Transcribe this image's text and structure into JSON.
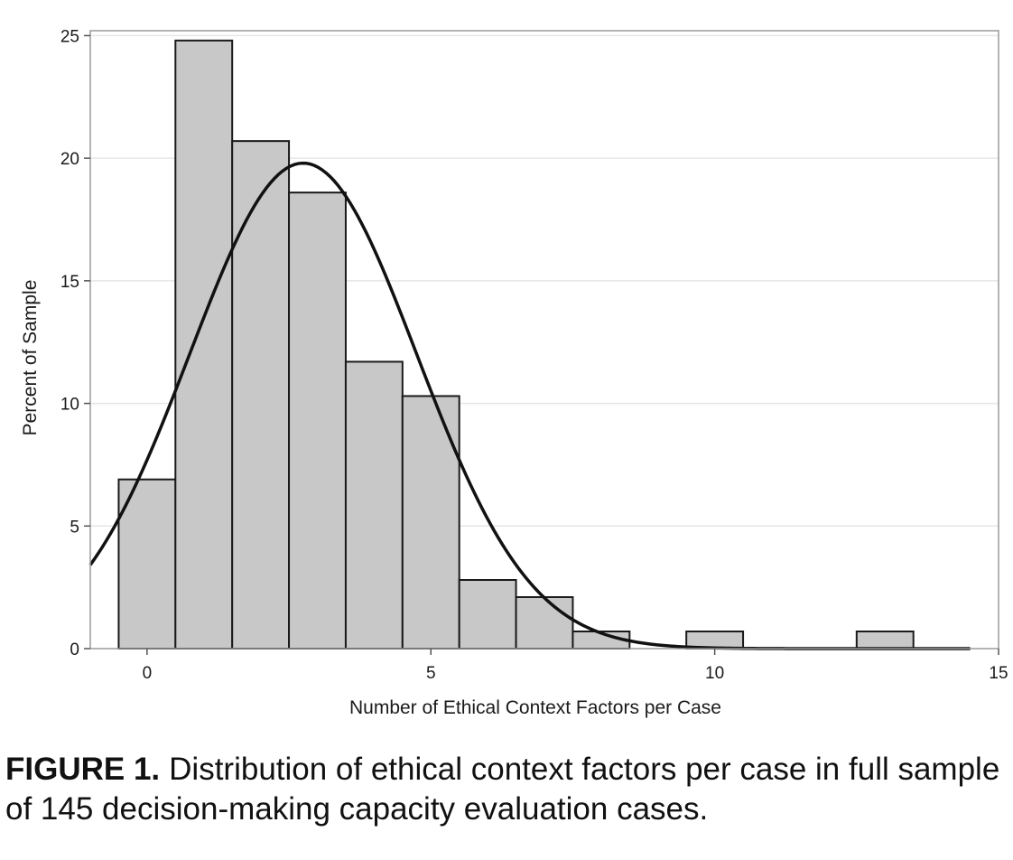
{
  "chart_data": {
    "type": "bar",
    "title": "",
    "xlabel": "Number of Ethical Context Factors per Case",
    "ylabel": "Percent of Sample",
    "xlim": [
      -1.0,
      15.0
    ],
    "ylim": [
      0,
      25.2
    ],
    "x_ticks": [
      0,
      5,
      10,
      15
    ],
    "y_ticks": [
      0,
      5,
      10,
      15,
      20,
      25
    ],
    "grid": true,
    "bin_width": 1,
    "categories": [
      0,
      1,
      2,
      3,
      4,
      5,
      6,
      7,
      8,
      9,
      10,
      11,
      12,
      13
    ],
    "values": [
      6.9,
      24.8,
      20.7,
      18.6,
      11.7,
      10.3,
      2.8,
      2.1,
      0.7,
      0,
      0.7,
      0,
      0,
      0.7
    ],
    "fit_curve": {
      "type": "normal",
      "mean": 2.75,
      "sd": 2.0,
      "peak_percent": 19.8,
      "x_range": [
        -1.0,
        14.5
      ]
    },
    "colors": {
      "bar_fill": "#c8c8c8",
      "bar_stroke": "#1a1a1a",
      "curve": "#111111",
      "grid": "#e6e6e6"
    }
  },
  "caption": {
    "label": "FIGURE 1.",
    "text": "Distribution of ethical context factors per case in full sample of 145 decision-making capacity evaluation cases."
  }
}
